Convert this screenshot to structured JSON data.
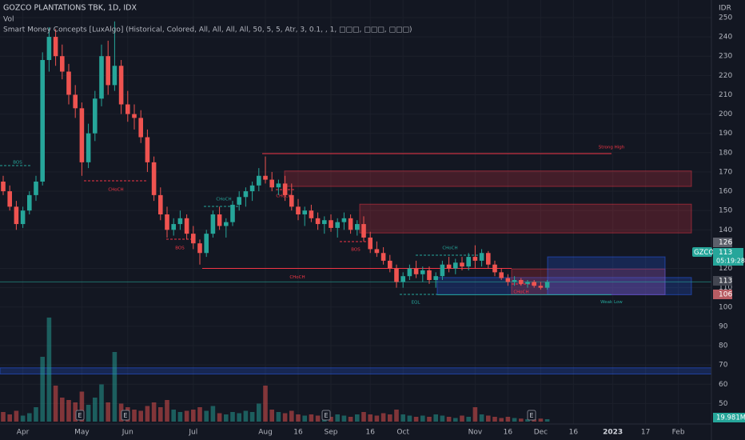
{
  "chart_data": {
    "type": "candlestick",
    "title": "GOZCO PLANTATIONS TBK, 1D, IDX",
    "legend_lines": [
      "Vol",
      "Smart Money Concepts [LuxAlgo] (Historical, Colored, All, All, All, All, 50, 5, 5, Atr, 3, 0.1, , 1, □□□, □□□, □□□)"
    ],
    "currency": "IDR",
    "symbol": "GZCO",
    "countdown": "05:19:28",
    "up_color": "#26a69a",
    "down_color": "#ef5350",
    "categories": [
      null,
      null,
      null,
      "Apr",
      null,
      null,
      null,
      null,
      null,
      null,
      null,
      null,
      "May",
      null,
      null,
      null,
      null,
      null,
      null,
      "Jun",
      null,
      null,
      null,
      null,
      null,
      null,
      null,
      null,
      null,
      "Jul",
      null,
      null,
      null,
      null,
      null,
      null,
      null,
      null,
      null,
      null,
      "Aug",
      null,
      null,
      null,
      null,
      "16",
      null,
      null,
      null,
      null,
      "Sep",
      null,
      null,
      null,
      null,
      null,
      "16",
      null,
      null,
      null,
      null,
      "Oct",
      null,
      null,
      null,
      null,
      null,
      null,
      null,
      null,
      null,
      null,
      "Nov",
      null,
      null,
      null,
      null,
      "16",
      null,
      null,
      null,
      null,
      "Dec",
      null,
      null,
      null,
      null,
      "16",
      null,
      null,
      null,
      null,
      null,
      "2023",
      null,
      null,
      null,
      null,
      "17",
      null,
      null,
      null,
      null,
      "Feb",
      null,
      null,
      null,
      null
    ],
    "candles": [
      [
        165,
        168,
        158,
        160
      ],
      [
        160,
        163,
        150,
        152
      ],
      [
        152,
        155,
        140,
        143
      ],
      [
        143,
        152,
        141,
        150
      ],
      [
        150,
        160,
        148,
        158
      ],
      [
        158,
        168,
        155,
        165
      ],
      [
        165,
        232,
        163,
        228
      ],
      [
        228,
        245,
        222,
        240
      ],
      [
        240,
        244,
        225,
        230
      ],
      [
        230,
        236,
        218,
        222
      ],
      [
        222,
        226,
        205,
        210
      ],
      [
        210,
        215,
        198,
        203
      ],
      [
        203,
        206,
        168,
        175
      ],
      [
        175,
        195,
        172,
        190
      ],
      [
        190,
        212,
        186,
        208
      ],
      [
        208,
        236,
        204,
        230
      ],
      [
        230,
        238,
        210,
        215
      ],
      [
        215,
        248,
        212,
        225
      ],
      [
        225,
        228,
        200,
        205
      ],
      [
        205,
        212,
        196,
        200
      ],
      [
        200,
        205,
        192,
        198
      ],
      [
        198,
        202,
        185,
        188
      ],
      [
        188,
        192,
        170,
        175
      ],
      [
        175,
        178,
        155,
        158
      ],
      [
        158,
        162,
        145,
        148
      ],
      [
        148,
        152,
        136,
        140
      ],
      [
        140,
        146,
        137,
        143
      ],
      [
        143,
        150,
        140,
        146
      ],
      [
        146,
        148,
        135,
        138
      ],
      [
        138,
        142,
        130,
        133
      ],
      [
        133,
        135,
        122,
        128
      ],
      [
        128,
        140,
        126,
        138
      ],
      [
        138,
        150,
        136,
        148
      ],
      [
        148,
        152,
        140,
        142
      ],
      [
        142,
        146,
        136,
        144
      ],
      [
        144,
        155,
        142,
        153
      ],
      [
        153,
        160,
        150,
        157
      ],
      [
        157,
        162,
        152,
        160
      ],
      [
        160,
        165,
        155,
        163
      ],
      [
        163,
        172,
        160,
        168
      ],
      [
        168,
        178,
        164,
        166
      ],
      [
        166,
        170,
        160,
        162
      ],
      [
        162,
        166,
        158,
        164
      ],
      [
        164,
        168,
        155,
        158
      ],
      [
        158,
        164,
        150,
        152
      ],
      [
        152,
        156,
        145,
        148
      ],
      [
        148,
        152,
        142,
        150
      ],
      [
        150,
        153,
        144,
        146
      ],
      [
        146,
        149,
        140,
        143
      ],
      [
        143,
        147,
        138,
        145
      ],
      [
        145,
        148,
        139,
        141
      ],
      [
        141,
        146,
        136,
        144
      ],
      [
        144,
        149,
        140,
        146
      ],
      [
        146,
        148,
        138,
        140
      ],
      [
        140,
        145,
        137,
        143
      ],
      [
        143,
        147,
        134,
        136
      ],
      [
        136,
        139,
        128,
        130
      ],
      [
        130,
        134,
        126,
        128
      ],
      [
        128,
        131,
        122,
        124
      ],
      [
        124,
        127,
        118,
        120
      ],
      [
        120,
        122,
        110,
        113
      ],
      [
        113,
        118,
        110,
        116
      ],
      [
        116,
        122,
        114,
        120
      ],
      [
        120,
        124,
        115,
        117
      ],
      [
        117,
        121,
        113,
        119
      ],
      [
        119,
        121,
        112,
        114
      ],
      [
        114,
        118,
        110,
        116
      ],
      [
        116,
        124,
        114,
        122
      ],
      [
        122,
        126,
        118,
        120
      ],
      [
        120,
        125,
        117,
        123
      ],
      [
        123,
        126,
        119,
        121
      ],
      [
        121,
        128,
        119,
        126
      ],
      [
        126,
        132,
        120,
        124
      ],
      [
        124,
        130,
        121,
        128
      ],
      [
        128,
        129,
        120,
        122
      ],
      [
        122,
        124,
        116,
        118
      ],
      [
        118,
        120,
        114,
        115
      ],
      [
        115,
        117,
        111,
        113
      ],
      [
        113,
        116,
        111,
        114
      ],
      [
        114,
        115,
        111,
        112
      ],
      [
        112,
        114,
        110,
        113
      ],
      [
        113,
        114,
        110,
        111
      ],
      [
        111,
        113,
        109,
        110
      ],
      [
        110,
        114,
        109,
        113
      ],
      null,
      null,
      null,
      null,
      null,
      null,
      null,
      null,
      null,
      null,
      null,
      null,
      null,
      null,
      null,
      null,
      null,
      null,
      null,
      null,
      null,
      null,
      null,
      null
    ],
    "volume": [
      80,
      60,
      90,
      50,
      70,
      120,
      540,
      867,
      300,
      200,
      180,
      160,
      250,
      140,
      200,
      310,
      160,
      580,
      150,
      120,
      100,
      90,
      130,
      160,
      120,
      180,
      100,
      80,
      90,
      100,
      120,
      90,
      130,
      70,
      60,
      80,
      70,
      90,
      80,
      150,
      300,
      100,
      80,
      70,
      90,
      60,
      50,
      60,
      50,
      70,
      40,
      60,
      50,
      40,
      60,
      80,
      60,
      50,
      70,
      60,
      100,
      60,
      50,
      40,
      50,
      40,
      60,
      50,
      40,
      30,
      50,
      40,
      120,
      60,
      50,
      40,
      30,
      40,
      30,
      25,
      20,
      20,
      25,
      19.981,
      null,
      null,
      null,
      null,
      null,
      null,
      null,
      null,
      null,
      null,
      null,
      null,
      null,
      null,
      null,
      null,
      null,
      null,
      null,
      null,
      null,
      null,
      null,
      null
    ],
    "volume_label": "19.981M",
    "vlim": [
      0,
      1000
    ],
    "ylim": [
      31.1,
      259.1
    ],
    "yticks": [
      50,
      60,
      70,
      80,
      90,
      100,
      110,
      120,
      140,
      150,
      160,
      170,
      180,
      190,
      200,
      210,
      220,
      230,
      240,
      250
    ],
    "price_labels": [
      {
        "value": 126,
        "color": "#5d606b"
      },
      {
        "value": 113,
        "color": "#434651"
      },
      {
        "value": 106,
        "color": "#b85c63"
      }
    ],
    "last_price": 113,
    "zones": [
      {
        "top": 170.5,
        "bottom": 162.5,
        "color": "#f23645"
      },
      {
        "top": 153.3,
        "bottom": 138.4,
        "color": "#f23645"
      },
      {
        "top": 115.3,
        "bottom": 106.4,
        "color": "#2962ff"
      },
      {
        "top": 119.7,
        "bottom": 106.4,
        "color": "#f23645"
      },
      {
        "top": 126,
        "bottom": 106.4,
        "color": "#2962ff"
      },
      {
        "top": 68.5,
        "bottom": 65.3,
        "color": "#2962ff"
      }
    ],
    "levels": [
      {
        "label": "Strong High",
        "value": 179.5,
        "color": "#f23645"
      },
      {
        "label": "CHoCH",
        "value": 120,
        "color": "#f23645"
      },
      {
        "label": "Weak Low",
        "value": 106.4,
        "color": "#26a69a"
      }
    ],
    "annotations": [
      "BOS",
      "CHoCH",
      "BOS",
      "CHoCH",
      "CHoCH",
      "BOS",
      "EQL",
      "CHoCH",
      "CHoCH"
    ],
    "earnings": "E"
  }
}
